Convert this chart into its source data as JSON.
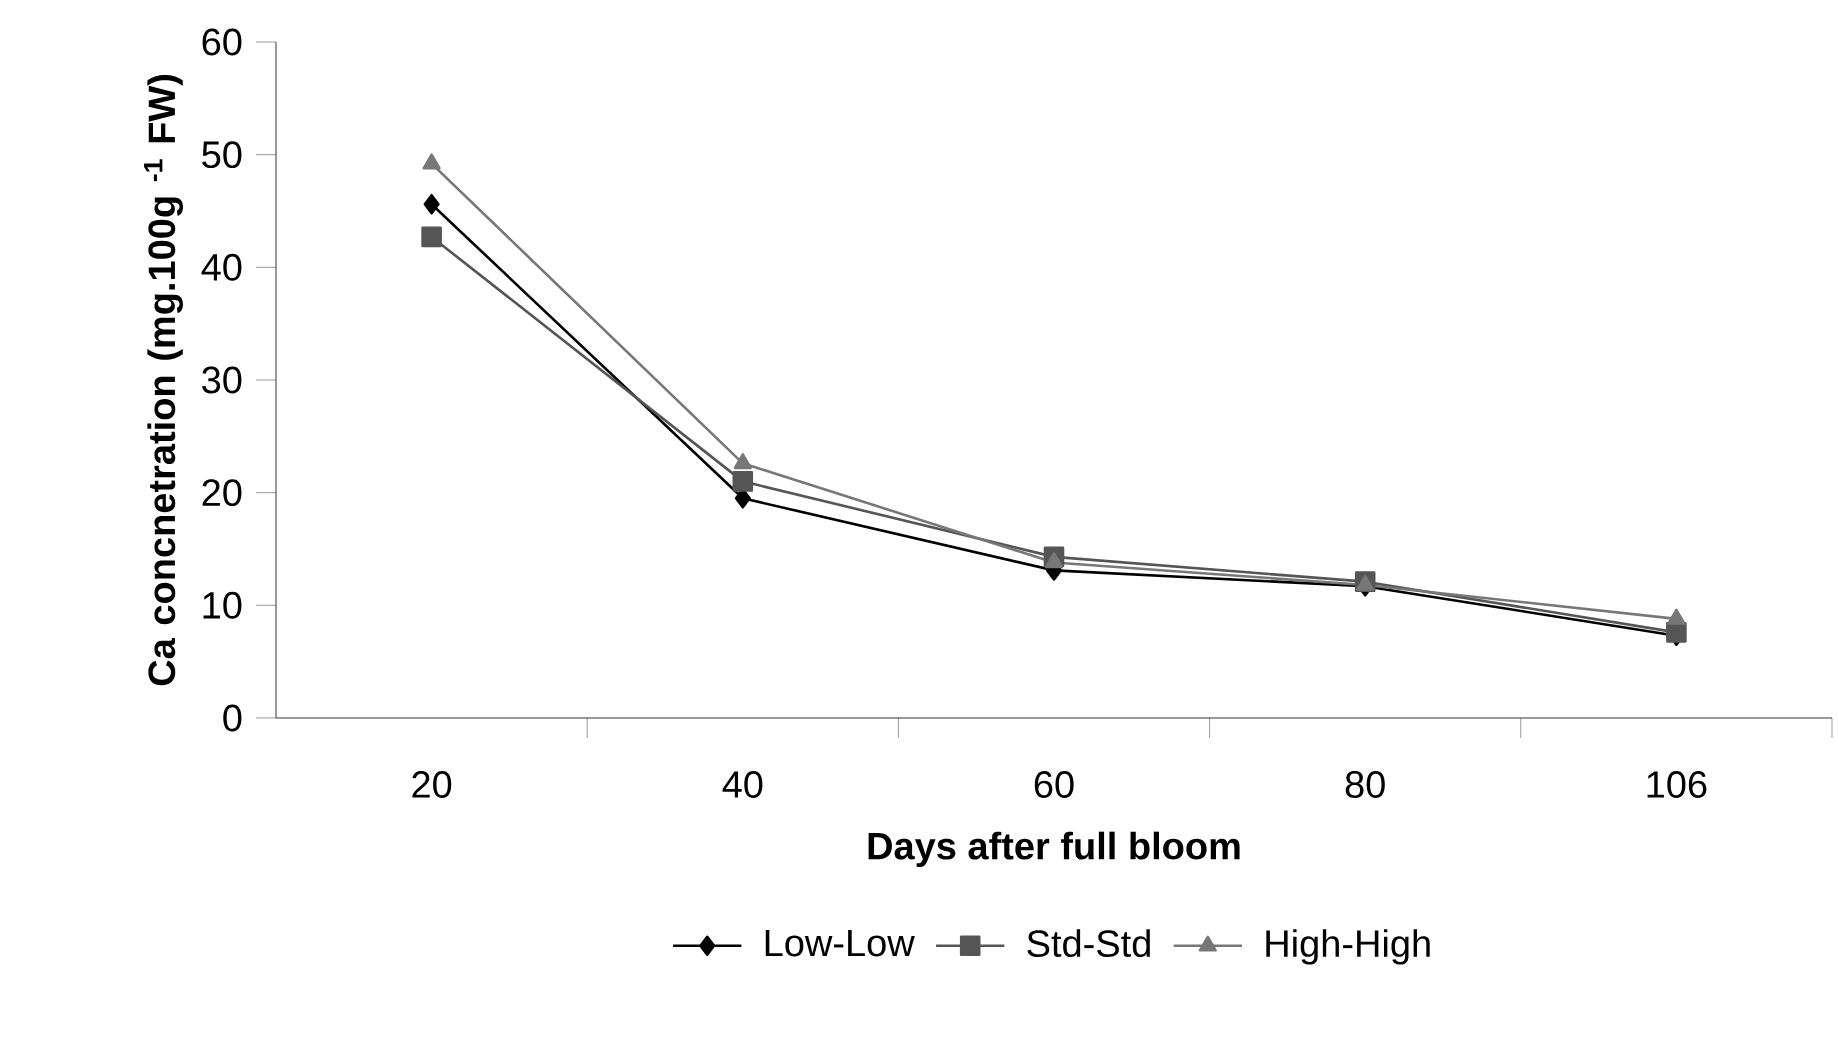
{
  "chart_data": {
    "type": "line",
    "xlabel": "Days after full bloom",
    "ylabel": "Ca concnetration (mg.100g $^{-1}$ FW)",
    "categories": [
      "20",
      "40",
      "60",
      "80",
      "106"
    ],
    "series": [
      {
        "name": "Low-Low",
        "color": "#000000",
        "marker": "diamond",
        "values": [
          45.6,
          19.5,
          13.1,
          11.7,
          7.3
        ]
      },
      {
        "name": "Std-Std",
        "color": "#555555",
        "marker": "square",
        "values": [
          42.7,
          21.0,
          14.3,
          12.1,
          7.6
        ]
      },
      {
        "name": "High-High",
        "color": "#777777",
        "marker": "triangle",
        "values": [
          49.2,
          22.6,
          13.8,
          11.8,
          8.8
        ]
      }
    ],
    "ylim": [
      0,
      60
    ],
    "yticks": [
      0,
      10,
      20,
      30,
      40,
      50,
      60
    ],
    "grid": false,
    "legend": "bottom",
    "line_style": "solid"
  }
}
